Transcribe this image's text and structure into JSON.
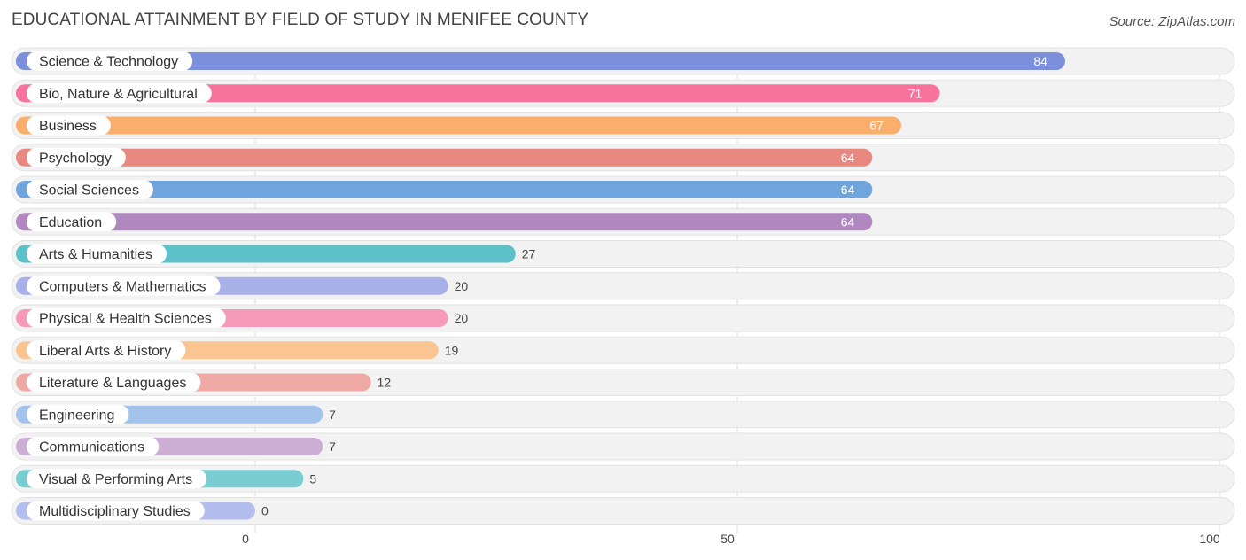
{
  "chart_data": {
    "type": "bar",
    "orientation": "horizontal",
    "title": "EDUCATIONAL ATTAINMENT BY FIELD OF STUDY IN MENIFEE COUNTY",
    "source": "Source: ZipAtlas.com",
    "xlim": [
      0,
      100
    ],
    "xticks": [
      0,
      50,
      100
    ],
    "categories": [
      "Science & Technology",
      "Bio, Nature & Agricultural",
      "Business",
      "Psychology",
      "Social Sciences",
      "Education",
      "Arts & Humanities",
      "Computers & Mathematics",
      "Physical & Health Sciences",
      "Liberal Arts & History",
      "Literature & Languages",
      "Engineering",
      "Communications",
      "Visual & Performing Arts",
      "Multidisciplinary Studies"
    ],
    "values": [
      84,
      71,
      67,
      64,
      64,
      64,
      27,
      20,
      20,
      19,
      12,
      7,
      7,
      5,
      0
    ],
    "colors": [
      "#7b8fdc",
      "#f7739e",
      "#f9ae6b",
      "#e98880",
      "#70a4dd",
      "#b187bf",
      "#5ec0c9",
      "#a8b0e8",
      "#f69ab9",
      "#fac590",
      "#efa9a5",
      "#a3c2ec",
      "#ccadd3",
      "#79ccd0",
      "#b3bdee"
    ]
  }
}
